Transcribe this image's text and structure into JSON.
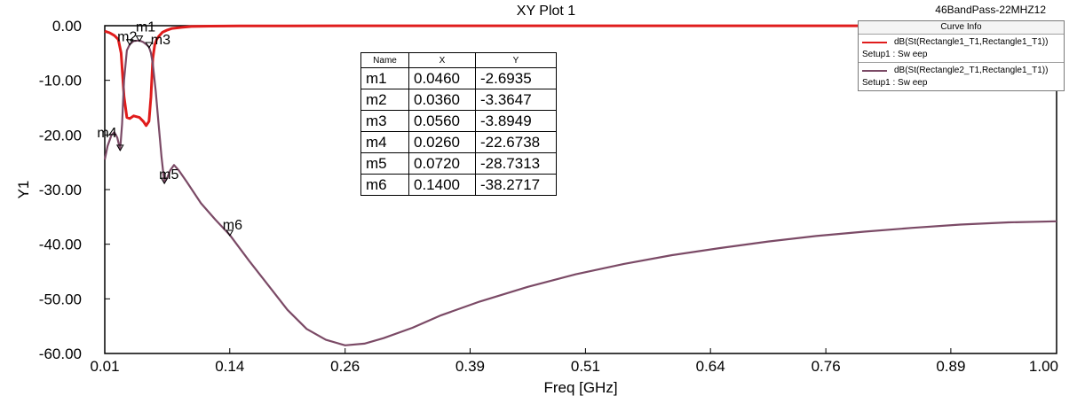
{
  "header": {
    "title": "XY Plot 1",
    "project": "46BandPass-22MHZ12"
  },
  "legend": {
    "title": "Curve Info",
    "items": [
      {
        "name": "dB(St(Rectangle1_T1,Rectangle1_T1))",
        "setup": "Setup1 : Sw eep",
        "color": "#e01c1c"
      },
      {
        "name": "dB(St(Rectangle2_T1,Rectangle1_T1))",
        "setup": "Setup1 : Sw eep",
        "color": "#7b4a66"
      }
    ]
  },
  "marker_table": {
    "headers": [
      "Name",
      "X",
      "Y"
    ],
    "rows": [
      [
        "m1",
        "0.0460",
        "-2.6935"
      ],
      [
        "m2",
        "0.0360",
        "-3.3647"
      ],
      [
        "m3",
        "0.0560",
        "-3.8949"
      ],
      [
        "m4",
        "0.0260",
        "-22.6738"
      ],
      [
        "m5",
        "0.0720",
        "-28.7313"
      ],
      [
        "m6",
        "0.1400",
        "-38.2717"
      ]
    ]
  },
  "chart_data": {
    "type": "line",
    "title": "XY Plot 1",
    "xlabel": "Freq [GHz]",
    "ylabel": "Y1",
    "xlim": [
      0.01,
      1.0
    ],
    "ylim": [
      -60,
      0
    ],
    "xticks": [
      "0.01",
      "0.14",
      "0.26",
      "0.39",
      "0.51",
      "0.64",
      "0.76",
      "0.89",
      "1.00"
    ],
    "yticks": [
      "0.00",
      "-10.00",
      "-20.00",
      "-30.00",
      "-40.00",
      "-50.00",
      "-60.00"
    ],
    "grid": false,
    "legend_position": "top-right",
    "series": [
      {
        "name": "dB(St(Rectangle1_T1,Rectangle1_T1))",
        "color": "#e01c1c",
        "x": [
          0.01,
          0.015,
          0.02,
          0.024,
          0.027,
          0.03,
          0.033,
          0.036,
          0.04,
          0.046,
          0.05,
          0.053,
          0.056,
          0.058,
          0.06,
          0.062,
          0.064,
          0.066,
          0.07,
          0.075,
          0.08,
          0.09,
          0.1,
          0.12,
          0.15,
          0.2,
          0.4,
          0.6,
          0.8,
          1.0
        ],
        "y": [
          -1.0,
          -1.3,
          -1.8,
          -2.5,
          -5,
          -13,
          -16.8,
          -17.0,
          -16.5,
          -16.8,
          -17.5,
          -18.3,
          -17.5,
          -13,
          -6,
          -3.5,
          -2.5,
          -2.0,
          -1.2,
          -0.8,
          -0.5,
          -0.3,
          -0.15,
          -0.08,
          -0.05,
          -0.03,
          -0.02,
          -0.02,
          -0.02,
          -0.02
        ]
      },
      {
        "name": "dB(St(Rectangle2_T1,Rectangle1_T1))",
        "color": "#7b4a66",
        "x": [
          0.01,
          0.013,
          0.017,
          0.02,
          0.023,
          0.026,
          0.028,
          0.03,
          0.033,
          0.036,
          0.04,
          0.046,
          0.05,
          0.053,
          0.056,
          0.058,
          0.06,
          0.063,
          0.066,
          0.069,
          0.072,
          0.075,
          0.078,
          0.082,
          0.087,
          0.095,
          0.11,
          0.125,
          0.14,
          0.16,
          0.18,
          0.2,
          0.22,
          0.24,
          0.26,
          0.28,
          0.3,
          0.33,
          0.36,
          0.4,
          0.45,
          0.5,
          0.55,
          0.6,
          0.65,
          0.7,
          0.75,
          0.8,
          0.85,
          0.9,
          0.95,
          1.0
        ],
        "y": [
          -24.5,
          -22,
          -20,
          -19.5,
          -20.5,
          -22.7,
          -18,
          -10,
          -4.5,
          -3.4,
          -2.8,
          -2.7,
          -3.0,
          -3.4,
          -3.9,
          -5,
          -7,
          -12,
          -18,
          -24,
          -28.7,
          -27.8,
          -26.5,
          -25.5,
          -26.5,
          -28.5,
          -32.5,
          -35.5,
          -38.3,
          -43,
          -47.5,
          -52,
          -55.5,
          -57.5,
          -58.5,
          -58.2,
          -57.2,
          -55.3,
          -53,
          -50.5,
          -47.8,
          -45.5,
          -43.6,
          -42,
          -40.7,
          -39.5,
          -38.5,
          -37.7,
          -37.0,
          -36.4,
          -36.0,
          -35.8
        ]
      }
    ],
    "markers": [
      {
        "name": "m1",
        "x": 0.046,
        "y": -2.6935,
        "series": 1
      },
      {
        "name": "m2",
        "x": 0.036,
        "y": -3.3647,
        "series": 1
      },
      {
        "name": "m3",
        "x": 0.056,
        "y": -3.8949,
        "series": 1
      },
      {
        "name": "m4",
        "x": 0.026,
        "y": -22.6738,
        "series": 1
      },
      {
        "name": "m5",
        "x": 0.072,
        "y": -28.7313,
        "series": 1
      },
      {
        "name": "m6",
        "x": 0.14,
        "y": -38.2717,
        "series": 1
      }
    ]
  }
}
